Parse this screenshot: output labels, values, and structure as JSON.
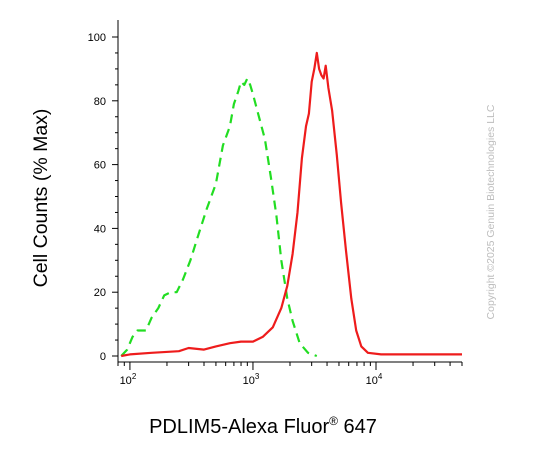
{
  "chart_data": {
    "type": "line",
    "xlabel": "PDLIM5-Alexa Fluor",
    "xlabel_sup": "®",
    "xlabel_suffix": " 647",
    "ylabel": "Cell Counts (% Max)",
    "x_scale": "log",
    "xlim": [
      80,
      50000
    ],
    "ylim": [
      0,
      100
    ],
    "x_ticks": [
      {
        "value": 100,
        "base": "10",
        "exp": "2"
      },
      {
        "value": 1000,
        "base": "10",
        "exp": "3"
      },
      {
        "value": 10000,
        "base": "10",
        "exp": "4"
      }
    ],
    "y_ticks": [
      0,
      20,
      40,
      60,
      80,
      100
    ],
    "grid": false,
    "watermark": "Copyright ©2025 Genuin Biotechnologies LLC",
    "series": [
      {
        "color": "#22dd22",
        "style": "dashed",
        "points": [
          [
            85,
            0
          ],
          [
            95,
            2
          ],
          [
            105,
            6
          ],
          [
            115,
            8
          ],
          [
            135,
            8
          ],
          [
            150,
            12
          ],
          [
            170,
            15
          ],
          [
            190,
            19
          ],
          [
            215,
            20
          ],
          [
            240,
            20
          ],
          [
            270,
            24
          ],
          [
            310,
            30
          ],
          [
            360,
            38
          ],
          [
            420,
            46
          ],
          [
            500,
            54
          ],
          [
            570,
            66
          ],
          [
            650,
            72
          ],
          [
            700,
            79
          ],
          [
            760,
            83
          ],
          [
            800,
            86
          ],
          [
            850,
            85
          ],
          [
            900,
            87
          ],
          [
            950,
            85
          ],
          [
            1000,
            82
          ],
          [
            1100,
            76
          ],
          [
            1250,
            68
          ],
          [
            1400,
            56
          ],
          [
            1550,
            44
          ],
          [
            1700,
            30
          ],
          [
            1900,
            18
          ],
          [
            2100,
            11
          ],
          [
            2400,
            4
          ],
          [
            2800,
            1
          ],
          [
            3300,
            0
          ]
        ]
      },
      {
        "color": "#ee1c1c",
        "style": "solid",
        "points": [
          [
            85,
            0
          ],
          [
            100,
            0.5
          ],
          [
            150,
            1
          ],
          [
            250,
            1.5
          ],
          [
            300,
            2.5
          ],
          [
            400,
            2
          ],
          [
            500,
            3
          ],
          [
            650,
            4
          ],
          [
            800,
            4.5
          ],
          [
            1000,
            4.5
          ],
          [
            1200,
            6
          ],
          [
            1450,
            9
          ],
          [
            1700,
            15
          ],
          [
            1900,
            22
          ],
          [
            2100,
            32
          ],
          [
            2300,
            45
          ],
          [
            2500,
            62
          ],
          [
            2700,
            72
          ],
          [
            2850,
            76
          ],
          [
            3000,
            86
          ],
          [
            3150,
            90
          ],
          [
            3300,
            95
          ],
          [
            3450,
            90
          ],
          [
            3600,
            88
          ],
          [
            3750,
            87
          ],
          [
            3900,
            91
          ],
          [
            4100,
            84
          ],
          [
            4400,
            77
          ],
          [
            4800,
            63
          ],
          [
            5200,
            48
          ],
          [
            5700,
            33
          ],
          [
            6300,
            18
          ],
          [
            6900,
            8
          ],
          [
            7600,
            3
          ],
          [
            8600,
            1
          ],
          [
            11000,
            0.5
          ],
          [
            20000,
            0.5
          ],
          [
            50000,
            0.5
          ]
        ]
      }
    ]
  }
}
